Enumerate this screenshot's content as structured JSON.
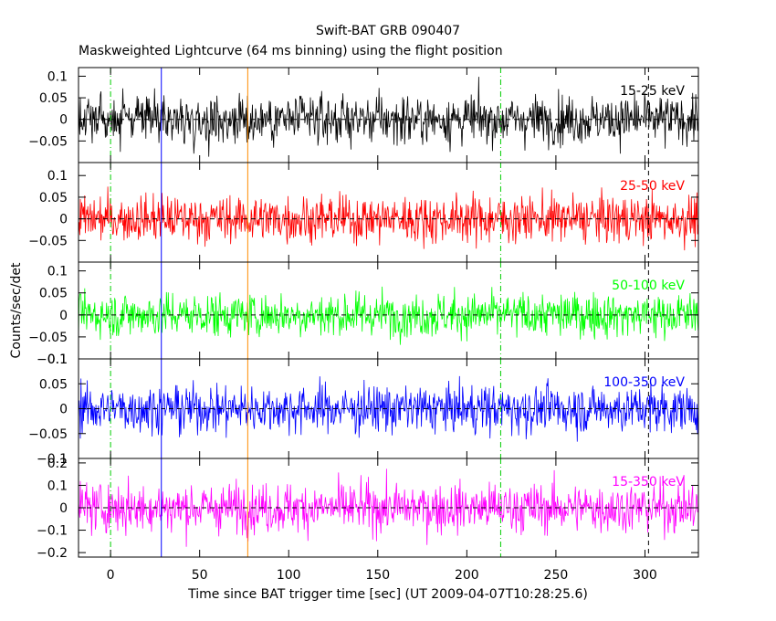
{
  "title": "Swift-BAT GRB 090407",
  "subtitle": "Maskweighted Lightcurve (64 ms binning) using the flight position",
  "chart_data": {
    "type": "line",
    "title": "Swift-BAT GRB 090407",
    "subtitle": "Maskweighted Lightcurve (64 ms binning) using the flight position",
    "xlabel": "Time since BAT trigger time [sec] (UT 2009-04-07T10:28:25.6)",
    "ylabel": "Counts/sec/det",
    "xlim": [
      -18,
      330
    ],
    "x_ticks": [
      0,
      50,
      100,
      150,
      200,
      250,
      300
    ],
    "bin_seconds": 0.064,
    "panels": [
      {
        "name": "15-25 keV",
        "color": "#000000",
        "ylim": [
          -0.1,
          0.12
        ],
        "y_ticks": [
          0.1,
          0.05,
          0,
          -0.05
        ],
        "y_tick_labels": [
          "0.1",
          "0.05",
          "0",
          "−0.05"
        ],
        "noise_sigma": 0.028
      },
      {
        "name": "25-50 keV",
        "color": "#ff0000",
        "ylim": [
          -0.1,
          0.13
        ],
        "y_ticks": [
          0.1,
          0.05,
          0,
          -0.05
        ],
        "y_tick_labels": [
          "0.1",
          "0.05",
          "0",
          "−0.05"
        ],
        "noise_sigma": 0.027
      },
      {
        "name": "50-100 keV",
        "color": "#00ff00",
        "ylim": [
          -0.1,
          0.12
        ],
        "y_ticks": [
          0.1,
          0.05,
          0,
          -0.05,
          -0.1
        ],
        "y_tick_labels": [
          "0.1",
          "0.05",
          "0",
          "−0.05",
          "−0.1"
        ],
        "noise_sigma": 0.025
      },
      {
        "name": "100-350 keV",
        "color": "#0000ff",
        "ylim": [
          -0.1,
          0.1
        ],
        "y_ticks": [
          0.1,
          0.05,
          0,
          -0.05,
          -0.1
        ],
        "y_tick_labels": [
          "0.1",
          "0.05",
          "0",
          "−0.05",
          "−0.1"
        ],
        "noise_sigma": 0.024
      },
      {
        "name": "15-350 keV",
        "color": "#ff00ff",
        "ylim": [
          -0.22,
          0.22
        ],
        "y_ticks": [
          0.2,
          0.1,
          0,
          -0.1,
          -0.2
        ],
        "y_tick_labels": [
          "0.2",
          "0.1",
          "0",
          "−0.1",
          "−0.2"
        ],
        "noise_sigma": 0.055
      }
    ],
    "x_tick_labels": [
      "0",
      "50",
      "100",
      "150",
      "200",
      "250",
      "300"
    ],
    "markers": [
      {
        "x": 0,
        "color": "#00cc00",
        "style": "dash-dot"
      },
      {
        "x": 28.5,
        "color": "#0000ff",
        "style": "solid"
      },
      {
        "x": 77,
        "color": "#ff8c00",
        "style": "solid"
      },
      {
        "x": 219,
        "color": "#00cc00",
        "style": "dash-dot"
      },
      {
        "x": 302,
        "color": "#000000",
        "style": "dash"
      }
    ],
    "grid": false,
    "zero_line": "dashed"
  }
}
